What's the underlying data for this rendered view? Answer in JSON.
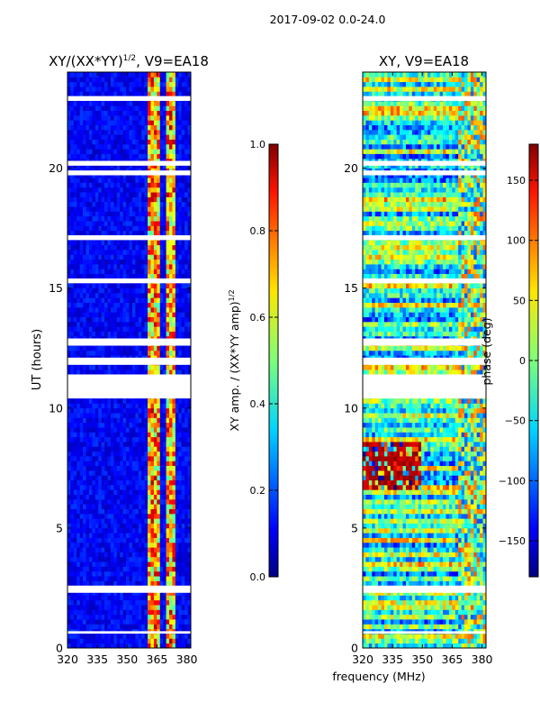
{
  "figure": {
    "suptitle": "2017-09-02 0.0-24.0",
    "xlabel": "frequency (MHz)"
  },
  "chart_data": [
    {
      "type": "heatmap",
      "title_main": "XY/(XX*YY)",
      "title_sup": "1/2",
      "title_rest": ", V9=EA18",
      "xlabel": "frequency (MHz)",
      "ylabel": "UT (hours)",
      "x_range": [
        320,
        382
      ],
      "y_range": [
        0,
        24
      ],
      "x_ticks": [
        320,
        335,
        350,
        365,
        380
      ],
      "y_ticks": [
        0,
        5,
        10,
        15,
        20
      ],
      "colorbar": {
        "label_main": "XY amp. / (XX*YY amp)",
        "label_sup": "1/2",
        "range": [
          0.0,
          1.0
        ],
        "ticks": [
          "0.0",
          "0.2",
          "0.4",
          "0.6",
          "0.8",
          "1.0"
        ],
        "tick_values": [
          0.0,
          0.2,
          0.4,
          0.6,
          0.8,
          1.0
        ]
      },
      "flagged_hours": [
        [
          0.6,
          0.7
        ],
        [
          2.3,
          2.6
        ],
        [
          10.4,
          11.4
        ],
        [
          11.8,
          12.1
        ],
        [
          12.6,
          12.9
        ],
        [
          15.2,
          15.4
        ],
        [
          17.0,
          17.2
        ],
        [
          19.7,
          19.9
        ],
        [
          20.1,
          20.3
        ],
        [
          22.8,
          23.0
        ]
      ],
      "bright_channels_mhz": [
        [
          360,
          363
        ],
        [
          364,
          367
        ],
        [
          369,
          372
        ],
        [
          373,
          375
        ]
      ],
      "colormap": "jet"
    },
    {
      "type": "heatmap",
      "title": "XY, V9=EA18",
      "ylabel": "UT (hours)",
      "x_range": [
        320,
        382
      ],
      "y_range": [
        0,
        24
      ],
      "x_ticks": [
        320,
        335,
        350,
        365,
        380
      ],
      "y_ticks": [
        0,
        5,
        10,
        15,
        20
      ],
      "colorbar": {
        "label": "phase (deg)",
        "range": [
          -180,
          180
        ],
        "ticks": [
          "−150",
          "−100",
          "−50",
          "0",
          "50",
          "100",
          "150"
        ],
        "tick_values": [
          -150,
          -100,
          -50,
          0,
          50,
          100,
          150
        ]
      },
      "flagged_hours": [
        [
          0.6,
          0.7
        ],
        [
          2.3,
          2.6
        ],
        [
          10.4,
          11.4
        ],
        [
          11.8,
          12.1
        ],
        [
          12.6,
          12.9
        ],
        [
          15.2,
          15.4
        ],
        [
          17.0,
          17.2
        ],
        [
          19.7,
          19.9
        ],
        [
          20.1,
          20.3
        ],
        [
          22.8,
          23.0
        ]
      ],
      "noisy_region": {
        "freq_mhz": [
          320,
          350
        ],
        "hours": [
          6.5,
          8.5
        ]
      },
      "colormap": "jet"
    }
  ]
}
